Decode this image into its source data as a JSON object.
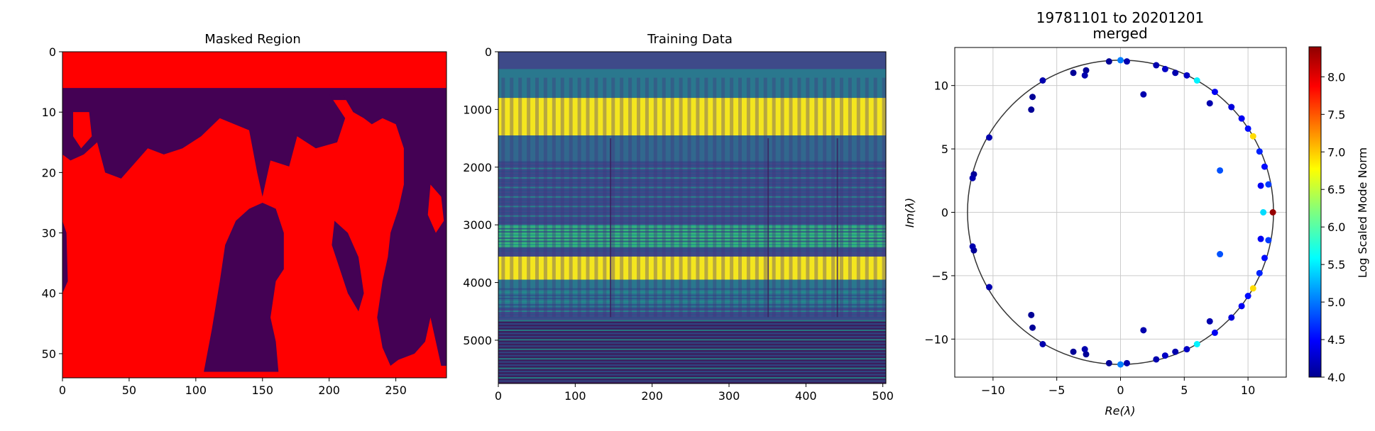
{
  "chart_data": [
    {
      "type": "heatmap",
      "title": "Masked Region",
      "xlabel": "",
      "ylabel": "",
      "xlim": [
        0,
        288
      ],
      "ylim": [
        54,
        0
      ],
      "xticks": [
        "0",
        "50",
        "100",
        "150",
        "200",
        "250"
      ],
      "yticks": [
        "0",
        "10",
        "20",
        "30",
        "40",
        "50"
      ],
      "colors": {
        "ocean": "#ff0000",
        "land": "#440154"
      }
    },
    {
      "type": "heatmap",
      "title": "Training Data",
      "xlabel": "",
      "ylabel": "",
      "xlim": [
        0,
        504
      ],
      "ylim": [
        5750,
        0
      ],
      "xticks": [
        "0",
        "100",
        "200",
        "300",
        "400",
        "500"
      ],
      "yticks": [
        "0",
        "1000",
        "2000",
        "3000",
        "4000",
        "5000"
      ],
      "colormap": "viridis",
      "bands": [
        {
          "y_range": [
            800,
            1450
          ],
          "level": "high"
        },
        {
          "y_range": [
            3550,
            3950
          ],
          "level": "high"
        },
        {
          "y_range": [
            3000,
            3400
          ],
          "level": "medium"
        },
        {
          "y_range": [
            4650,
            5750
          ],
          "level": "low"
        }
      ]
    },
    {
      "type": "scatter",
      "title": "19781101 to 20201201",
      "subtitle": "merged",
      "xlabel": "Re(λ)",
      "ylabel": "Im(λ)",
      "xlim": [
        -13,
        13
      ],
      "ylim": [
        -13,
        13
      ],
      "xticks": [
        "−10",
        "−5",
        "0",
        "5",
        "10"
      ],
      "yticks": [
        "−10",
        "−5",
        "0",
        "5",
        "10"
      ],
      "grid": true,
      "unit_circle_radius": 12,
      "colorbar": {
        "label": "Log Scaled Mode Norm",
        "min": 4.0,
        "max": 8.4,
        "ticks": [
          "4.0",
          "4.5",
          "5.0",
          "5.5",
          "6.0",
          "6.5",
          "7.0",
          "7.5",
          "8.0"
        ],
        "colormap": "jet"
      },
      "points": [
        {
          "x": 11.95,
          "y": 0.0,
          "v": 8.3
        },
        {
          "x": 11.2,
          "y": 0.0,
          "v": 5.5
        },
        {
          "x": 10.4,
          "y": 6.0,
          "v": 6.9
        },
        {
          "x": 10.4,
          "y": -6.0,
          "v": 6.9
        },
        {
          "x": 6.0,
          "y": 10.4,
          "v": 5.6
        },
        {
          "x": 6.0,
          "y": -10.4,
          "v": 5.6
        },
        {
          "x": 0.0,
          "y": 12.0,
          "v": 5.1
        },
        {
          "x": 0.0,
          "y": -12.0,
          "v": 5.1
        },
        {
          "x": 11.6,
          "y": 2.2,
          "v": 4.8
        },
        {
          "x": 11.6,
          "y": -2.2,
          "v": 4.8
        },
        {
          "x": 11.3,
          "y": 3.6,
          "v": 4.6
        },
        {
          "x": 11.3,
          "y": -3.6,
          "v": 4.6
        },
        {
          "x": 10.9,
          "y": 4.8,
          "v": 4.7
        },
        {
          "x": 10.9,
          "y": -4.8,
          "v": 4.7
        },
        {
          "x": 10.0,
          "y": 6.6,
          "v": 4.6
        },
        {
          "x": 10.0,
          "y": -6.6,
          "v": 4.6
        },
        {
          "x": 9.5,
          "y": 7.4,
          "v": 4.5
        },
        {
          "x": 9.5,
          "y": -7.4,
          "v": 4.5
        },
        {
          "x": 8.7,
          "y": 8.3,
          "v": 4.4
        },
        {
          "x": 8.7,
          "y": -8.3,
          "v": 4.4
        },
        {
          "x": 7.4,
          "y": 9.5,
          "v": 4.5
        },
        {
          "x": 7.4,
          "y": -9.5,
          "v": 4.5
        },
        {
          "x": 7.0,
          "y": 8.6,
          "v": 4.2
        },
        {
          "x": 7.0,
          "y": -8.6,
          "v": 4.2
        },
        {
          "x": 7.8,
          "y": 3.3,
          "v": 4.9
        },
        {
          "x": 7.8,
          "y": -3.3,
          "v": 4.9
        },
        {
          "x": 11.0,
          "y": 2.1,
          "v": 4.5
        },
        {
          "x": 11.0,
          "y": -2.1,
          "v": 4.5
        },
        {
          "x": 5.2,
          "y": 10.8,
          "v": 4.3
        },
        {
          "x": 5.2,
          "y": -10.8,
          "v": 4.3
        },
        {
          "x": 4.3,
          "y": 11.0,
          "v": 4.2
        },
        {
          "x": 4.3,
          "y": -11.0,
          "v": 4.2
        },
        {
          "x": 3.5,
          "y": 11.3,
          "v": 4.3
        },
        {
          "x": 3.5,
          "y": -11.3,
          "v": 4.3
        },
        {
          "x": 2.8,
          "y": 11.6,
          "v": 4.2
        },
        {
          "x": 2.8,
          "y": -11.6,
          "v": 4.2
        },
        {
          "x": 1.8,
          "y": 9.3,
          "v": 4.2
        },
        {
          "x": 1.8,
          "y": -9.3,
          "v": 4.2
        },
        {
          "x": 0.5,
          "y": 11.9,
          "v": 4.2
        },
        {
          "x": 0.5,
          "y": -11.9,
          "v": 4.2
        },
        {
          "x": -0.9,
          "y": 11.9,
          "v": 4.1
        },
        {
          "x": -0.9,
          "y": -11.9,
          "v": 4.1
        },
        {
          "x": -2.7,
          "y": 11.2,
          "v": 4.1
        },
        {
          "x": -2.7,
          "y": -11.2,
          "v": 4.1
        },
        {
          "x": -2.8,
          "y": 10.8,
          "v": 4.2
        },
        {
          "x": -2.8,
          "y": -10.8,
          "v": 4.2
        },
        {
          "x": -3.7,
          "y": 11.0,
          "v": 4.1
        },
        {
          "x": -3.7,
          "y": -11.0,
          "v": 4.1
        },
        {
          "x": -6.1,
          "y": 10.4,
          "v": 4.2
        },
        {
          "x": -6.1,
          "y": -10.4,
          "v": 4.2
        },
        {
          "x": -6.9,
          "y": 9.1,
          "v": 4.1
        },
        {
          "x": -6.9,
          "y": -9.1,
          "v": 4.1
        },
        {
          "x": -7.0,
          "y": 8.1,
          "v": 4.1
        },
        {
          "x": -7.0,
          "y": -8.1,
          "v": 4.1
        },
        {
          "x": -10.3,
          "y": 5.9,
          "v": 4.2
        },
        {
          "x": -10.3,
          "y": -5.9,
          "v": 4.2
        },
        {
          "x": -11.5,
          "y": 3.0,
          "v": 4.1
        },
        {
          "x": -11.5,
          "y": -3.0,
          "v": 4.1
        },
        {
          "x": -11.6,
          "y": 2.7,
          "v": 4.2
        },
        {
          "x": -11.6,
          "y": -2.7,
          "v": 4.2
        }
      ]
    }
  ]
}
